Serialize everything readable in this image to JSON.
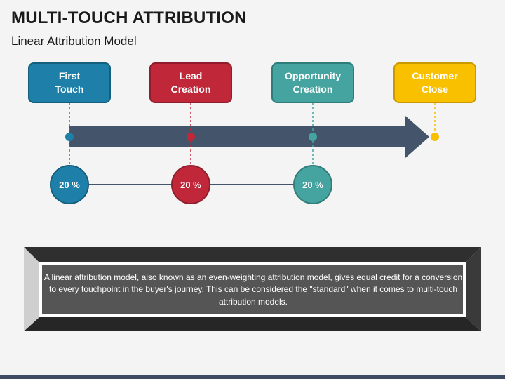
{
  "title": "MULTI-TOUCH ATTRIBUTION",
  "subtitle": "Linear Attribution Model",
  "colors": {
    "blue": "#1e7fa8",
    "red": "#c0283a",
    "teal": "#45a4a0",
    "yellow": "#f9c000",
    "arrow": "#44546a",
    "connector": "#44546a"
  },
  "stages": [
    {
      "label": "First\nTouch",
      "color": "#1e7fa8",
      "border": "#155f7e",
      "percent": "20 %"
    },
    {
      "label": "Lead\nCreation",
      "color": "#c0283a",
      "border": "#8f1d2b",
      "percent": "20 %"
    },
    {
      "label": "Opportunity\nCreation",
      "color": "#45a4a0",
      "border": "#2f7d7a",
      "percent": "20 %"
    },
    {
      "label": "Customer\nClose",
      "color": "#f9c000",
      "border": "#c99a00",
      "percent": null
    }
  ],
  "description": "A linear attribution model, also known as an even-weighting attribution model, gives equal credit for a conversion to every touchpoint in the buyer's journey. This can be considered the \"standard\" when it comes to multi-touch attribution models."
}
